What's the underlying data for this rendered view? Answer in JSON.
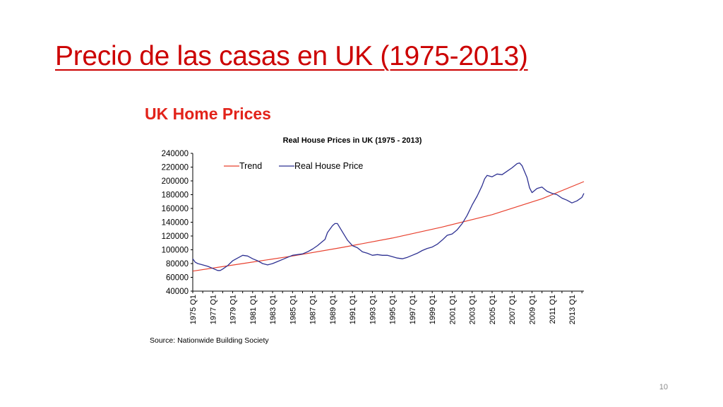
{
  "slide": {
    "title": "Precio de las casas en UK (1975-2013)",
    "page_number": "10",
    "title_color": "#cc0000"
  },
  "chart_data": {
    "type": "line",
    "heading": "UK Home Prices",
    "heading_color": "#e2231a",
    "title": "Real House Prices in UK (1975 - 2013)",
    "source": "Source: Nationwide Building Society",
    "xlabel": "",
    "ylabel": "",
    "xlim": [
      1975,
      2014.2
    ],
    "ylim": [
      40000,
      240000
    ],
    "y_ticks": [
      40000,
      60000,
      80000,
      100000,
      120000,
      140000,
      160000,
      180000,
      200000,
      220000,
      240000
    ],
    "x_ticks": [
      {
        "x": 1975,
        "label": "1975 Q1"
      },
      {
        "x": 1977,
        "label": "1977 Q1"
      },
      {
        "x": 1979,
        "label": "1979 Q1"
      },
      {
        "x": 1981,
        "label": "1981 Q1"
      },
      {
        "x": 1983,
        "label": "1983 Q1"
      },
      {
        "x": 1985,
        "label": "1985 Q1"
      },
      {
        "x": 1987,
        "label": "1987 Q1"
      },
      {
        "x": 1989,
        "label": "1989 Q1"
      },
      {
        "x": 1991,
        "label": "1991 Q1"
      },
      {
        "x": 1993,
        "label": "1993 Q1"
      },
      {
        "x": 1995,
        "label": "1995 Q1"
      },
      {
        "x": 1997,
        "label": "1997 Q1"
      },
      {
        "x": 1999,
        "label": "1999 Q1"
      },
      {
        "x": 2001,
        "label": "2001 Q1"
      },
      {
        "x": 2003,
        "label": "2003 Q1"
      },
      {
        "x": 2005,
        "label": "2005 Q1"
      },
      {
        "x": 2007,
        "label": "2007 Q1"
      },
      {
        "x": 2009,
        "label": "2009 Q1"
      },
      {
        "x": 2011,
        "label": "2011 Q1"
      },
      {
        "x": 2013,
        "label": "2013 Q1"
      }
    ],
    "grid": false,
    "legend_position": "top-left",
    "series": [
      {
        "name": "Trend",
        "color": "#e8412f",
        "x": [
          1975,
          1980,
          1985,
          1990,
          1995,
          2000,
          2005,
          2010,
          2014.2
        ],
        "y": [
          69000,
          80000,
          91000,
          103500,
          117000,
          133000,
          151000,
          174000,
          199000
        ]
      },
      {
        "name": "Real House Price",
        "color": "#2e3192",
        "x": [
          1975,
          1975.25,
          1975.5,
          1976,
          1976.5,
          1977,
          1977.5,
          1977.75,
          1978,
          1978.5,
          1979,
          1979.5,
          1980,
          1980.5,
          1981,
          1981.5,
          1982,
          1982.5,
          1983,
          1983.5,
          1984,
          1984.5,
          1985,
          1985.5,
          1986,
          1986.5,
          1987,
          1987.5,
          1988,
          1988.25,
          1988.5,
          1989,
          1989.25,
          1989.5,
          1990,
          1990.5,
          1991,
          1991.5,
          1992,
          1992.5,
          1993,
          1993.5,
          1994,
          1994.5,
          1995,
          1995.5,
          1996,
          1996.5,
          1997,
          1997.5,
          1998,
          1998.5,
          1999,
          1999.5,
          2000,
          2000.5,
          2001,
          2001.5,
          2002,
          2002.5,
          2003,
          2003.5,
          2004,
          2004.25,
          2004.5,
          2005,
          2005.5,
          2006,
          2006.5,
          2007,
          2007.5,
          2007.75,
          2008,
          2008.5,
          2008.75,
          2009,
          2009.5,
          2010,
          2010.5,
          2011,
          2011.5,
          2012,
          2012.5,
          2013,
          2013.5,
          2014,
          2014.2
        ],
        "y": [
          87000,
          82000,
          80000,
          78000,
          76000,
          73000,
          70000,
          70000,
          72000,
          77000,
          84000,
          88000,
          92000,
          91000,
          87000,
          84000,
          80000,
          78000,
          80000,
          83000,
          86000,
          89000,
          92000,
          93000,
          94000,
          97000,
          101000,
          106000,
          112000,
          115000,
          125000,
          135000,
          138000,
          138000,
          126000,
          114000,
          106000,
          103000,
          97000,
          95000,
          92000,
          93000,
          92000,
          92000,
          90000,
          88000,
          87000,
          89000,
          92000,
          95000,
          99000,
          102000,
          104000,
          108000,
          114000,
          121000,
          123000,
          129000,
          138000,
          150000,
          165000,
          178000,
          193000,
          203000,
          208000,
          206000,
          210000,
          209000,
          214000,
          219000,
          225000,
          226000,
          222000,
          205000,
          190000,
          183000,
          189000,
          191000,
          185000,
          182000,
          180000,
          175000,
          172000,
          168000,
          171000,
          176000,
          182000
        ]
      }
    ]
  }
}
